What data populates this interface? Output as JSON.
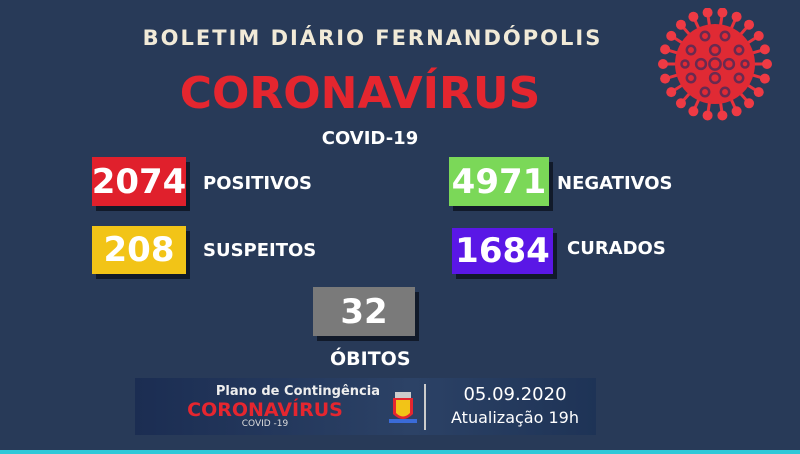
{
  "header": {
    "top_title": "BOLETIM DIÁRIO FERNANDÓPOLIS",
    "main_title": "CORONAVÍRUS",
    "sub_title": "COVID-19"
  },
  "stats": [
    {
      "value": "2074",
      "label": "POSITIVOS",
      "color": "#e0202c"
    },
    {
      "value": "4971",
      "label": "NEGATIVOS",
      "color": "#7bd858"
    },
    {
      "value": "208",
      "label": "SUSPEITOS",
      "color": "#f2c417"
    },
    {
      "value": "1684",
      "label": "CURADOS",
      "color": "#5a17e6"
    },
    {
      "value": "32",
      "label": "ÓBITOS",
      "color": "#7a7a7a"
    }
  ],
  "banner": {
    "line1": "Plano de Contingência",
    "line2": "CORONAVÍRUS",
    "line3": "COVID -19",
    "date": "05.09.2020",
    "update": "Atualização 19h"
  },
  "icons": {
    "virus": "coronavirus-icon",
    "crest": "city-crest-icon"
  },
  "colors": {
    "background": "#283a58",
    "accent": "#e5262f",
    "line": "#2fc8d8"
  }
}
